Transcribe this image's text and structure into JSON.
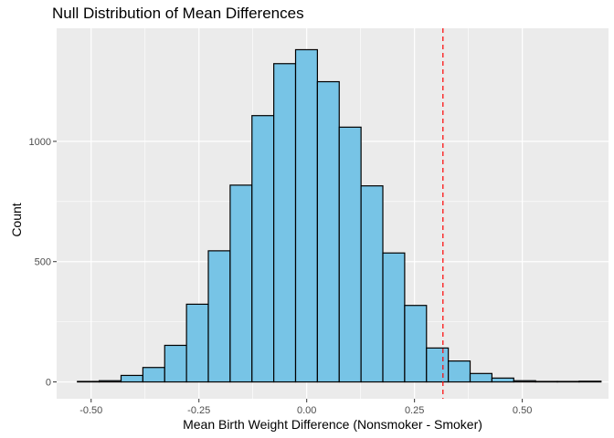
{
  "chart_data": {
    "type": "bar",
    "title": "Null Distribution of Mean Differences",
    "xlabel": "Mean Birth Weight Difference (Nonsmoker - Smoker)",
    "ylabel": "Count",
    "xlim": [
      -0.58,
      0.7
    ],
    "ylim": [
      -70,
      1470
    ],
    "xticks": [
      -0.5,
      -0.25,
      0.0,
      0.25,
      0.5
    ],
    "xtick_labels": [
      "-0.50",
      "-0.25",
      "0.00",
      "0.25",
      "0.50"
    ],
    "yticks": [
      0,
      500,
      1000
    ],
    "ytick_labels": [
      "0",
      "500",
      "1000"
    ],
    "bin_width": 0.0506,
    "bins": [
      {
        "x": -0.5065,
        "count": 2
      },
      {
        "x": -0.4559,
        "count": 5
      },
      {
        "x": -0.4053,
        "count": 27
      },
      {
        "x": -0.3547,
        "count": 60
      },
      {
        "x": -0.3041,
        "count": 152
      },
      {
        "x": -0.2535,
        "count": 323
      },
      {
        "x": -0.2029,
        "count": 545
      },
      {
        "x": -0.1523,
        "count": 818
      },
      {
        "x": -0.1017,
        "count": 1107
      },
      {
        "x": -0.0511,
        "count": 1323
      },
      {
        "x": -0.0005,
        "count": 1381
      },
      {
        "x": 0.0501,
        "count": 1248
      },
      {
        "x": 0.1007,
        "count": 1059
      },
      {
        "x": 0.1513,
        "count": 815
      },
      {
        "x": 0.2019,
        "count": 536
      },
      {
        "x": 0.2525,
        "count": 318
      },
      {
        "x": 0.3031,
        "count": 141
      },
      {
        "x": 0.3537,
        "count": 87
      },
      {
        "x": 0.4043,
        "count": 35
      },
      {
        "x": 0.4549,
        "count": 16
      },
      {
        "x": 0.5055,
        "count": 5
      },
      {
        "x": 0.5561,
        "count": 2
      },
      {
        "x": 0.6067,
        "count": 2
      },
      {
        "x": 0.6573,
        "count": 3
      }
    ],
    "vline": {
      "x": 0.316,
      "color": "#ff0000",
      "style": "dashed"
    },
    "fill_color": "#77c4e6",
    "outline_color": "#000000",
    "panel_color": "#ebebeb",
    "grid": true
  }
}
